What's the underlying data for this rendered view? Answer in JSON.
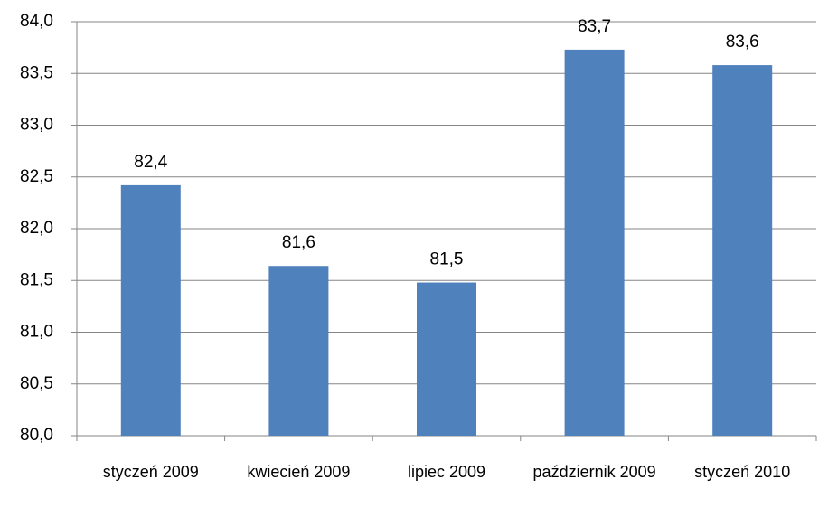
{
  "chart_data": {
    "type": "bar",
    "categories": [
      "styczeń 2009",
      "kwiecień 2009",
      "lipiec 2009",
      "październik 2009",
      "styczeń 2010"
    ],
    "values": [
      82.42,
      81.64,
      81.48,
      83.73,
      83.58
    ],
    "value_labels": [
      "82,4",
      "81,6",
      "81,5",
      "83,7",
      "83,6"
    ],
    "color": "#4f81bd",
    "ylim": [
      80,
      84
    ],
    "yticks": [
      {
        "value": 80,
        "label": "80,0"
      },
      {
        "value": 80.5,
        "label": "80,5"
      },
      {
        "value": 81,
        "label": "81,0"
      },
      {
        "value": 81.5,
        "label": "81,5"
      },
      {
        "value": 82,
        "label": "82,0"
      },
      {
        "value": 82.5,
        "label": "82,5"
      },
      {
        "value": 83,
        "label": "83,0"
      },
      {
        "value": 83.5,
        "label": "83,5"
      },
      {
        "value": 84,
        "label": "84,0"
      }
    ],
    "grid": true
  }
}
